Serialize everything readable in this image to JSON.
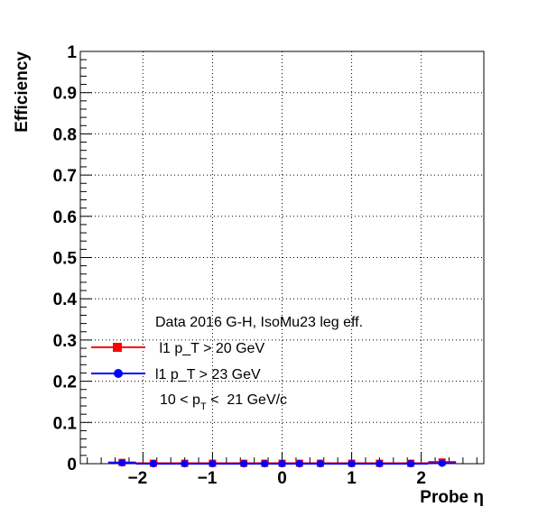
{
  "chart_data": {
    "type": "scatter",
    "xlabel": "Probe η",
    "ylabel": "Efficiency",
    "xlim": [
      -2.9,
      2.9
    ],
    "ylim": [
      0,
      1
    ],
    "grid": true,
    "x_ticks": [
      -2,
      -1,
      0,
      1,
      2
    ],
    "x_tick_labels": [
      "−2",
      "−1",
      "0",
      "1",
      "2"
    ],
    "y_ticks": [
      0,
      0.1,
      0.2,
      0.3,
      0.4,
      0.5,
      0.6,
      0.7,
      0.8,
      0.9,
      1
    ],
    "y_tick_labels": [
      "0",
      "0.1",
      "0.2",
      "0.3",
      "0.4",
      "0.5",
      "0.6",
      "0.7",
      "0.8",
      "0.9",
      "1"
    ],
    "legend": {
      "header": "Data 2016 G-H, IsoMu23 leg eff.",
      "footer_prefix": "10 < p",
      "footer_sub": "T",
      "footer_suffix": " <  21 GeV/c",
      "placement": "center-left"
    },
    "series": [
      {
        "name": " l1 p_T > 20 GeV",
        "color": "#ff0000",
        "marker": "square",
        "x": [
          -2.3,
          -1.85,
          -1.4,
          -1.0,
          -0.55,
          -0.25,
          0.0,
          0.25,
          0.55,
          1.0,
          1.4,
          1.85,
          2.3
        ],
        "xerr": [
          0.2,
          0.25,
          0.2,
          0.2,
          0.25,
          0.05,
          0.2,
          0.05,
          0.25,
          0.2,
          0.2,
          0.25,
          0.2
        ],
        "y": [
          0.003,
          0.001,
          0.001,
          0.001,
          0.001,
          0.001,
          0.001,
          0.001,
          0.001,
          0.001,
          0.001,
          0.001,
          0.004
        ]
      },
      {
        "name": "l1 p_T > 23 GeV",
        "color": "#0000ff",
        "marker": "circle",
        "x": [
          -2.3,
          -1.85,
          -1.4,
          -1.0,
          -0.55,
          -0.25,
          0.0,
          0.25,
          0.55,
          1.0,
          1.4,
          1.85,
          2.3
        ],
        "xerr": [
          0.2,
          0.25,
          0.2,
          0.2,
          0.25,
          0.05,
          0.2,
          0.05,
          0.25,
          0.2,
          0.2,
          0.25,
          0.2
        ],
        "y": [
          0.002,
          0.0,
          0.0,
          0.0,
          0.0,
          0.0,
          0.0,
          0.0,
          0.0,
          0.0,
          0.0,
          0.0,
          0.001
        ]
      }
    ]
  }
}
